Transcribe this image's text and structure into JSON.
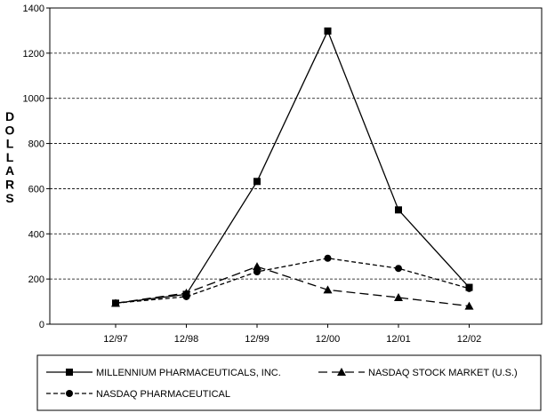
{
  "chart_data": {
    "type": "line",
    "title": "",
    "xlabel": "",
    "ylabel": "DOLLARS",
    "categories": [
      "12/97",
      "12/98",
      "12/99",
      "12/00",
      "12/01",
      "12/02"
    ],
    "ylim": [
      0,
      1400
    ],
    "yticks": [
      0,
      200,
      400,
      600,
      800,
      1000,
      1200,
      1400
    ],
    "grid": "horizontal dashed",
    "legend_position": "bottom",
    "series": [
      {
        "name": "MILLENNIUM PHARMACEUTICALS, INC.",
        "values": [
          93,
          132,
          632,
          1298,
          506,
          163
        ],
        "marker": "square",
        "dash": "solid",
        "color": "#000000"
      },
      {
        "name": "NASDAQ STOCK MARKET (U.S.)",
        "values": [
          93,
          138,
          255,
          152,
          118,
          80
        ],
        "marker": "triangle",
        "dash": "long-dash",
        "color": "#000000"
      },
      {
        "name": "NASDAQ PHARMACEUTICAL",
        "values": [
          93,
          122,
          232,
          292,
          247,
          158
        ],
        "marker": "circle",
        "dash": "short-dash",
        "color": "#000000"
      }
    ]
  }
}
